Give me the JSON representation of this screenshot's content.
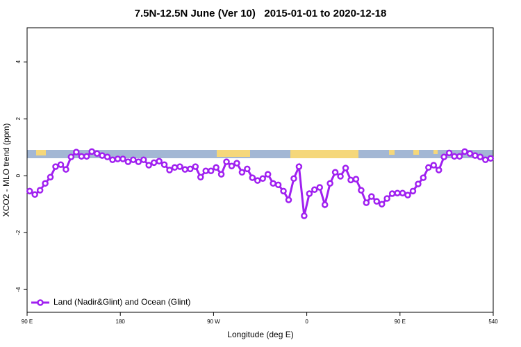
{
  "chart_data": {
    "type": "line",
    "title": "7.5N-12.5N June (Ver 10)   2015-01-01 to 2020-12-18",
    "x_label": "Longitude (deg E)",
    "y_label": "XCO2 - MLO trend (ppm)",
    "xlim": [
      90,
      540
    ],
    "xticks": [
      {
        "value": 90,
        "label": "90 E"
      },
      180,
      {
        "value": 270,
        "label": "90 W"
      },
      {
        "value": 360,
        "label": "0"
      },
      {
        "value": 450,
        "label": "90 E"
      },
      540
    ],
    "ylim": [
      -4.8,
      5.2
    ],
    "yticks": [
      -4,
      -2,
      0,
      2,
      4
    ],
    "legend": "bottom-left",
    "x": [
      92.5,
      97.5,
      102.5,
      107.5,
      112.5,
      117.5,
      122.5,
      127.5,
      132.5,
      137.5,
      142.5,
      147.5,
      152.5,
      157.5,
      162.5,
      167.5,
      172.5,
      177.5,
      182.5,
      187.5,
      192.5,
      197.5,
      202.5,
      207.5,
      212.5,
      217.5,
      222.5,
      227.5,
      232.5,
      237.5,
      242.5,
      247.5,
      252.5,
      257.5,
      262.5,
      267.5,
      272.5,
      277.5,
      282.5,
      287.5,
      292.5,
      297.5,
      302.5,
      307.5,
      312.5,
      317.5,
      322.5,
      327.5,
      332.5,
      337.5,
      342.5,
      347.5,
      352.5,
      357.5,
      362.5,
      367.5,
      372.5,
      377.5,
      382.5,
      387.5,
      392.5,
      397.5,
      402.5,
      407.5,
      412.5,
      417.5,
      422.5,
      427.5,
      432.5,
      437.5,
      442.5,
      447.5,
      452.5,
      457.5,
      462.5,
      467.5,
      472.5,
      477.5,
      482.5,
      487.5,
      492.5,
      497.5,
      502.5,
      507.5,
      512.5,
      517.5,
      522.5,
      527.5,
      532.5,
      537.5
    ],
    "series": [
      {
        "name": "Land (Nadir&Glint) and Ocean (Glint)",
        "color": "#a020f0",
        "values": [
          -0.54,
          -0.66,
          -0.51,
          -0.27,
          -0.05,
          0.32,
          0.39,
          0.22,
          0.66,
          0.83,
          0.68,
          0.68,
          0.85,
          0.78,
          0.71,
          0.66,
          0.56,
          0.59,
          0.59,
          0.49,
          0.56,
          0.49,
          0.56,
          0.37,
          0.46,
          0.51,
          0.39,
          0.2,
          0.29,
          0.32,
          0.22,
          0.24,
          0.32,
          -0.05,
          0.17,
          0.17,
          0.29,
          0.05,
          0.49,
          0.34,
          0.44,
          0.12,
          0.24,
          -0.07,
          -0.17,
          -0.1,
          0.05,
          -0.27,
          -0.32,
          -0.54,
          -0.85,
          -0.1,
          0.32,
          -1.41,
          -0.63,
          -0.49,
          -0.41,
          -1.02,
          -0.27,
          0.12,
          -0.02,
          0.27,
          -0.15,
          -0.12,
          -0.51,
          -0.95,
          -0.73,
          -0.9,
          -1.0,
          -0.8,
          -0.63,
          -0.61,
          -0.61,
          -0.68,
          -0.54,
          -0.29,
          -0.07,
          0.29,
          0.37,
          0.2,
          0.66,
          0.8,
          0.68,
          0.68,
          0.85,
          0.78,
          0.71,
          0.66,
          0.56,
          0.61
        ]
      }
    ]
  }
}
